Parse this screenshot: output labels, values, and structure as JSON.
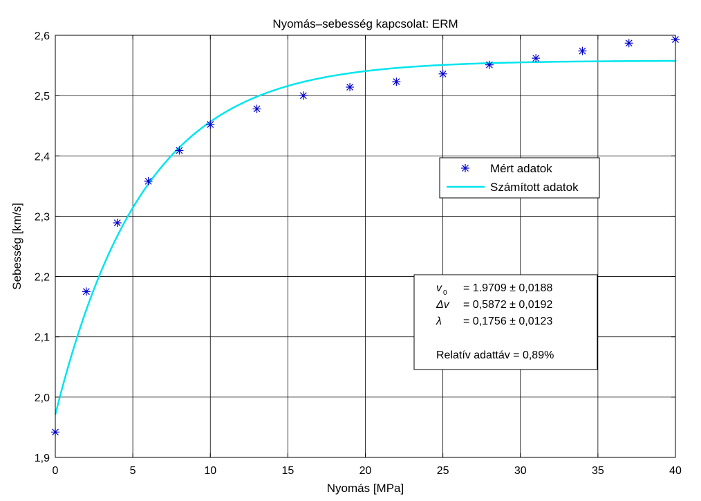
{
  "chart_data": {
    "type": "scatter",
    "title": "Nyomás–sebesség kapcsolat: ERM",
    "xlabel": "Nyomás [MPa]",
    "ylabel": "Sebesség [km/s]",
    "xlim": [
      0,
      40
    ],
    "ylim": [
      1.9,
      2.6
    ],
    "xticks": [
      0,
      5,
      10,
      15,
      20,
      25,
      30,
      35,
      40
    ],
    "xtick_labels": [
      "0",
      "5",
      "10",
      "15",
      "20",
      "25",
      "30",
      "35",
      "40"
    ],
    "yticks": [
      1.9,
      2.0,
      2.1,
      2.2,
      2.3,
      2.4,
      2.5,
      2.6
    ],
    "ytick_labels": [
      "1,9",
      "2,0",
      "2,1",
      "2,2",
      "2,3",
      "2,4",
      "2,5",
      "2,6"
    ],
    "grid": true,
    "legend_position": "right",
    "series": [
      {
        "name": "Mért adatok",
        "kind": "markers",
        "marker": "asterisk",
        "color": "#0000cc",
        "x": [
          0,
          2,
          4,
          6,
          8,
          10,
          13,
          16,
          19,
          22,
          25,
          28,
          31,
          34,
          37,
          40
        ],
        "y": [
          1.942,
          2.175,
          2.289,
          2.358,
          2.409,
          2.452,
          2.478,
          2.5,
          2.514,
          2.523,
          2.536,
          2.551,
          2.562,
          2.574,
          2.587,
          2.593
        ]
      },
      {
        "name": "Számított adatok",
        "kind": "line",
        "color": "#00e5ee",
        "model": {
          "v0": 1.9709,
          "dv": 0.5872,
          "lambda": 0.1756
        }
      }
    ],
    "annotation": {
      "lines": [
        {
          "symbol": "v",
          "subscript": "0",
          "text": "= 1.9709 ± 0,0188"
        },
        {
          "symbol": "Δv",
          "subscript": "",
          "text": "= 0,5872 ± 0,0192"
        },
        {
          "symbol": "λ",
          "subscript": "",
          "text": "= 0,1756 ± 0,0123"
        }
      ],
      "footer": "Relatív adattáv  =  0,89%"
    }
  }
}
